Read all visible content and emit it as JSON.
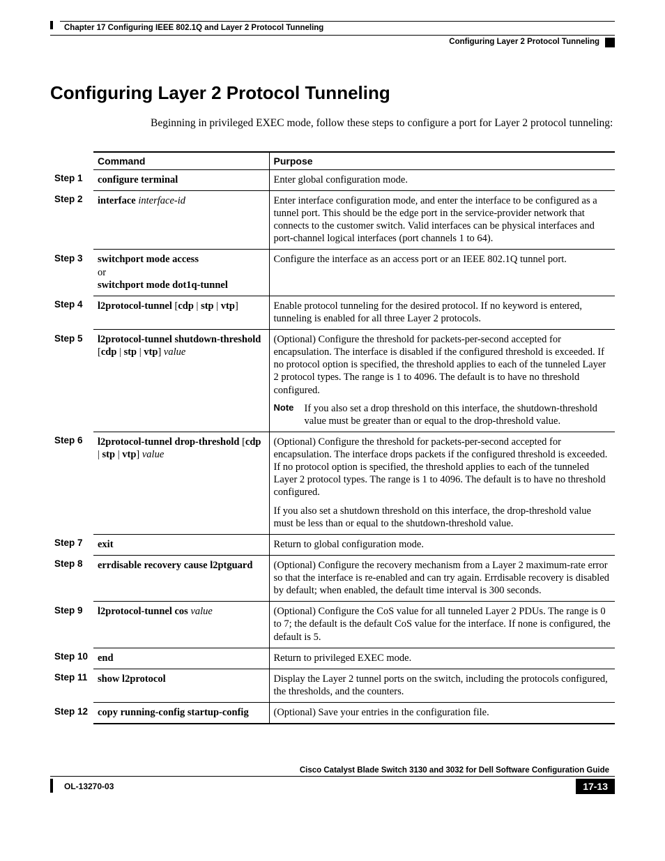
{
  "header": {
    "chapter": "Chapter 17      Configuring IEEE 802.1Q and Layer 2 Protocol Tunneling",
    "section": "Configuring Layer 2 Protocol Tunneling"
  },
  "title": "Configuring Layer 2 Protocol Tunneling",
  "intro": "Beginning in privileged EXEC mode, follow these steps to configure a port for Layer 2 protocol tunneling:",
  "table": {
    "head_command": "Command",
    "head_purpose": "Purpose",
    "rows": [
      {
        "step": "Step 1",
        "cmd_html": "<span class=\"b\">configure terminal</span>",
        "purpose_html": "Enter global configuration mode."
      },
      {
        "step": "Step 2",
        "cmd_html": "<span class=\"b\">interface</span> <span class=\"i\">interface-id</span>",
        "purpose_html": "Enter interface configuration mode, and enter the interface to be configured as a tunnel port. This should be the edge port in the service-provider network that connects to the customer switch. Valid interfaces can be physical interfaces and port-channel logical interfaces (port channels 1 to 64)."
      },
      {
        "step": "Step 3",
        "cmd_html": "<span class=\"b\">switchport mode access</span><br>or<br><span class=\"b\">switchport mode dot1q-tunnel</span>",
        "purpose_html": "Configure the interface as an access port or an IEEE 802.1Q tunnel port."
      },
      {
        "step": "Step 4",
        "cmd_html": "<span class=\"b\">l2protocol-tunnel</span> [<span class=\"b\">cdp</span> | <span class=\"b\">stp</span> | <span class=\"b\">vtp</span>]",
        "purpose_html": "Enable protocol tunneling for the desired protocol. If no keyword is entered, tunneling is enabled for all three Layer 2 protocols."
      },
      {
        "step": "Step 5",
        "cmd_html": "<span class=\"b\">l2protocol-tunnel shutdown-threshold</span> [<span class=\"b\">cdp</span> | <span class=\"b\">stp</span> | <span class=\"b\">vtp</span>] <span class=\"i\">value</span>",
        "purpose_html": "(Optional) Configure the threshold for packets-per-second accepted for encapsulation. The interface is disabled if the configured threshold is exceeded. If no protocol option is specified, the threshold applies to each of the tunneled Layer 2 protocol types. The range is 1 to 4096. The default is to have no threshold configured.<div class=\"note-row\"><div class=\"note-label\">Note</div><div class=\"note-body\">If you also set a drop threshold on this interface, the shutdown-threshold value must be greater than or equal to the drop-threshold value.</div></div>"
      },
      {
        "step": "Step 6",
        "cmd_html": "<span class=\"b\">l2protocol-tunnel drop-threshold</span> [<span class=\"b\">cdp</span> | <span class=\"b\">stp</span> | <span class=\"b\">vtp</span>] <span class=\"i\">value</span>",
        "purpose_html": "(Optional) Configure the threshold for packets-per-second accepted for encapsulation. The interface drops packets if the configured threshold is exceeded. If no protocol option is specified, the threshold applies to each of the tunneled Layer 2 protocol types. The range is 1 to 4096. The default is to have no threshold configured.<div class=\"para2\">If you also set a shutdown threshold on this interface, the drop-threshold value must be less than or equal to the shutdown-threshold value.</div>"
      },
      {
        "step": "Step 7",
        "cmd_html": "<span class=\"b\">exit</span>",
        "purpose_html": "Return to global configuration mode."
      },
      {
        "step": "Step 8",
        "cmd_html": "<span class=\"b\">errdisable recovery cause l2ptguard</span>",
        "purpose_html": "(Optional) Configure the recovery mechanism from a Layer 2 maximum-rate error so that the interface is re-enabled and can try again. Errdisable recovery is disabled by default; when enabled, the default time interval is 300 seconds."
      },
      {
        "step": "Step 9",
        "cmd_html": "<span class=\"b\">l2protocol-tunnel cos</span> <span class=\"i\">value</span>",
        "purpose_html": "(Optional) Configure the CoS value for all tunneled Layer 2 PDUs. The range is 0 to 7; the default is the default CoS value for the interface. If none is configured, the default is 5."
      },
      {
        "step": "Step 10",
        "cmd_html": "<span class=\"b\">end</span>",
        "purpose_html": "Return to privileged EXEC mode."
      },
      {
        "step": "Step 11",
        "cmd_html": "<span class=\"b\">show l2protocol</span>",
        "purpose_html": "Display the Layer 2 tunnel ports on the switch, including the protocols configured, the thresholds, and the counters."
      },
      {
        "step": "Step 12",
        "cmd_html": "<span class=\"b\">copy running-config startup-config</span>",
        "purpose_html": "(Optional) Save your entries in the configuration file."
      }
    ]
  },
  "footer": {
    "guide": "Cisco Catalyst Blade Switch 3130 and 3032 for Dell Software Configuration Guide",
    "docnum": "OL-13270-03",
    "pagenum": "17-13"
  }
}
